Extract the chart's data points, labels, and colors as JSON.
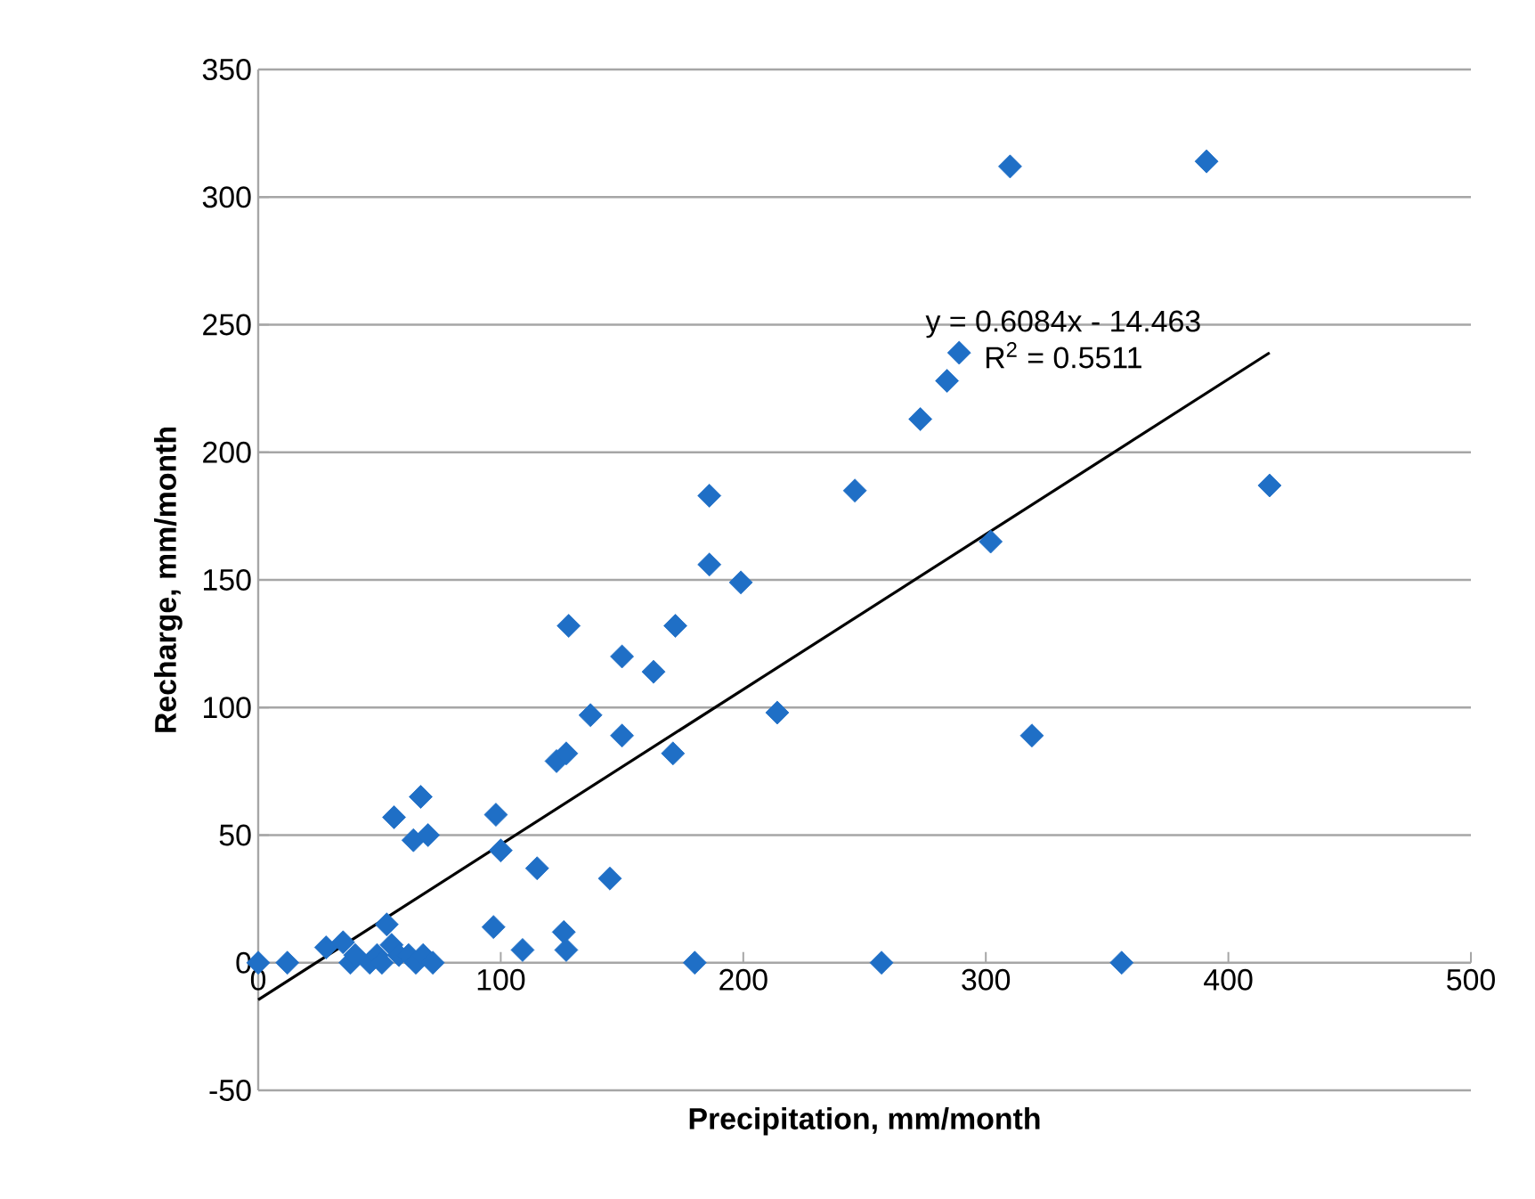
{
  "chart_data": {
    "type": "scatter",
    "xlabel": "Precipitation, mm/month",
    "ylabel": "Recharge, mm/month",
    "xlim": [
      0,
      500
    ],
    "ylim": [
      -50,
      350
    ],
    "xticks": [
      0,
      100,
      200,
      300,
      400,
      500
    ],
    "yticks": [
      -50,
      0,
      50,
      100,
      150,
      200,
      250,
      300,
      350
    ],
    "grid": "y",
    "series": [
      {
        "marker": "diamond",
        "color": "#1f6fc6",
        "x": [
          0,
          12,
          28,
          35,
          38,
          40,
          46,
          49,
          51,
          55,
          53,
          58,
          62,
          65,
          68,
          72,
          56,
          67,
          64,
          70,
          98,
          97,
          100,
          109,
          115,
          123,
          127,
          128,
          126,
          127,
          137,
          150,
          150,
          145,
          163,
          172,
          171,
          180,
          186,
          186,
          199,
          214,
          246,
          257,
          273,
          284,
          289,
          302,
          310,
          319,
          356,
          391,
          417
        ],
        "values": [
          0,
          0,
          6,
          8,
          0,
          3,
          0,
          3,
          0,
          7,
          15,
          3,
          3,
          0,
          3,
          0,
          57,
          65,
          48,
          50,
          58,
          14,
          44,
          5,
          37,
          79,
          82,
          132,
          12,
          5,
          97,
          120,
          89,
          33,
          114,
          132,
          82,
          0,
          183,
          156,
          149,
          98,
          185,
          0,
          213,
          228,
          239,
          165,
          312,
          89,
          0,
          314,
          187
        ]
      },
      {
        "type": "line",
        "marker": "none",
        "color": "#000000",
        "x": [
          0,
          417
        ],
        "values": [
          -14.5,
          239
        ]
      }
    ],
    "annotations": [
      "y = 0.6084x - 14.463",
      "R$^{2}$ = 0.5511"
    ]
  }
}
